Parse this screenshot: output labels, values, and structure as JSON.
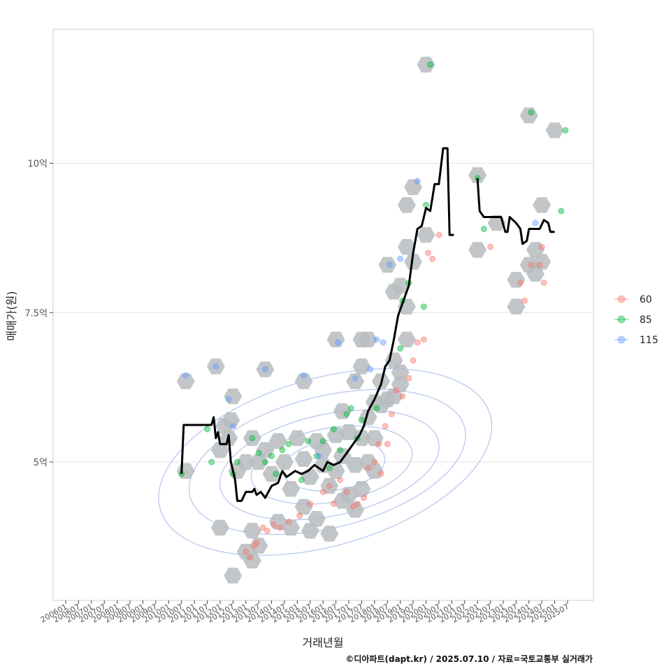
{
  "chart_data": {
    "type": "scatter",
    "xlabel": "거래년월",
    "ylabel": "매매가(원)",
    "caption": "©디아파트(dapt.kr) / 2025.07.10 / 자료=국토교통부 실거래가",
    "x_ticks": [
      "200601",
      "200607",
      "200701",
      "200707",
      "200801",
      "200807",
      "200901",
      "200907",
      "201001",
      "201007",
      "201101",
      "201107",
      "201201",
      "201207",
      "201301",
      "201307",
      "201401",
      "201407",
      "201501",
      "201507",
      "201601",
      "201607",
      "201701",
      "201707",
      "201801",
      "201807",
      "201901",
      "201907",
      "202001",
      "202007",
      "202101",
      "202107",
      "202201",
      "202207",
      "202301",
      "202307",
      "202401",
      "202407",
      "202501",
      "202507"
    ],
    "y_ticks": [
      {
        "value": 5,
        "label": "5억"
      },
      {
        "value": 7.5,
        "label": "7.5억"
      },
      {
        "value": 10,
        "label": "10억"
      }
    ],
    "xlim": [
      "2006-01",
      "2025-12"
    ],
    "ylim": [
      2.7,
      12.3
    ],
    "grid": "horizontal",
    "legend_position": "right",
    "series": [
      {
        "name": "60",
        "color": "#F8766D",
        "points": [
          [
            "2013-01",
            3.5
          ],
          [
            "2013-03",
            3.4
          ],
          [
            "2013-05",
            3.6
          ],
          [
            "2013-06",
            3.65
          ],
          [
            "2013-09",
            3.9
          ],
          [
            "2013-11",
            3.85
          ],
          [
            "2014-02",
            3.95
          ],
          [
            "2014-05",
            3.9
          ],
          [
            "2014-09",
            4.0
          ],
          [
            "2015-02",
            4.1
          ],
          [
            "2015-07",
            4.3
          ],
          [
            "2016-01",
            4.5
          ],
          [
            "2016-04",
            4.6
          ],
          [
            "2016-06",
            4.3
          ],
          [
            "2016-09",
            4.7
          ],
          [
            "2016-12",
            4.5
          ],
          [
            "2017-03",
            4.25
          ],
          [
            "2017-05",
            4.3
          ],
          [
            "2017-08",
            4.4
          ],
          [
            "2017-10",
            4.9
          ],
          [
            "2018-01",
            5.0
          ],
          [
            "2018-03",
            5.3
          ],
          [
            "2018-04",
            4.8
          ],
          [
            "2018-06",
            5.6
          ],
          [
            "2018-07",
            5.3
          ],
          [
            "2018-09",
            5.8
          ],
          [
            "2018-11",
            6.2
          ],
          [
            "2019-02",
            6.1
          ],
          [
            "2019-05",
            6.4
          ],
          [
            "2019-07",
            6.7
          ],
          [
            "2019-09",
            7.0
          ],
          [
            "2019-12",
            7.05
          ],
          [
            "2020-02",
            8.5
          ],
          [
            "2020-04",
            8.4
          ],
          [
            "2020-07",
            8.8
          ],
          [
            "2022-07",
            8.6
          ],
          [
            "2023-09",
            8.0
          ],
          [
            "2023-11",
            7.7
          ],
          [
            "2024-02",
            8.3
          ],
          [
            "2024-06",
            8.3
          ],
          [
            "2024-07",
            8.6
          ],
          [
            "2024-08",
            8.0
          ]
        ]
      },
      {
        "name": "85",
        "color": "#00BA38",
        "points": [
          [
            "2010-07",
            4.8
          ],
          [
            "2011-07",
            5.55
          ],
          [
            "2011-09",
            5.0
          ],
          [
            "2012-07",
            4.8
          ],
          [
            "2012-09",
            5.0
          ],
          [
            "2013-04",
            5.4
          ],
          [
            "2013-07",
            5.15
          ],
          [
            "2013-10",
            5.0
          ],
          [
            "2014-01",
            5.1
          ],
          [
            "2014-03",
            4.8
          ],
          [
            "2014-06",
            5.2
          ],
          [
            "2014-09",
            5.3
          ],
          [
            "2015-03",
            4.7
          ],
          [
            "2015-06",
            5.35
          ],
          [
            "2015-10",
            5.1
          ],
          [
            "2016-01",
            5.35
          ],
          [
            "2016-04",
            4.9
          ],
          [
            "2016-06",
            5.55
          ],
          [
            "2016-09",
            5.2
          ],
          [
            "2016-12",
            5.8
          ],
          [
            "2017-02",
            5.9
          ],
          [
            "2017-05",
            5.4
          ],
          [
            "2017-07",
            5.7
          ],
          [
            "2018-02",
            5.9
          ],
          [
            "2019-01",
            6.9
          ],
          [
            "2019-02",
            7.7
          ],
          [
            "2019-05",
            8.0
          ],
          [
            "2019-12",
            7.6
          ],
          [
            "2020-01",
            9.3
          ],
          [
            "2020-03",
            11.65
          ],
          [
            "2022-01",
            9.75
          ],
          [
            "2022-04",
            8.9
          ],
          [
            "2024-02",
            10.85
          ],
          [
            "2025-04",
            9.2
          ],
          [
            "2025-06",
            10.55
          ]
        ]
      },
      {
        "name": "115",
        "color": "#619CFF",
        "points": [
          [
            "2010-09",
            6.45
          ],
          [
            "2011-11",
            6.6
          ],
          [
            "2012-05",
            6.05
          ],
          [
            "2012-07",
            5.6
          ],
          [
            "2013-10",
            6.55
          ],
          [
            "2015-04",
            6.45
          ],
          [
            "2015-11",
            5.1
          ],
          [
            "2016-08",
            7.0
          ],
          [
            "2017-04",
            6.4
          ],
          [
            "2017-11",
            6.55
          ],
          [
            "2018-02",
            7.05
          ],
          [
            "2018-05",
            7.0
          ],
          [
            "2018-08",
            8.3
          ],
          [
            "2019-01",
            8.4
          ],
          [
            "2019-09",
            9.7
          ],
          [
            "2024-04",
            9.0
          ]
        ]
      }
    ],
    "median_line": [
      [
        "2010-07",
        4.8
      ],
      [
        "2010-08",
        5.62
      ],
      [
        "2011-09",
        5.62
      ],
      [
        "2011-10",
        5.75
      ],
      [
        "2011-11",
        5.4
      ],
      [
        "2011-12",
        5.5
      ],
      [
        "2012-01",
        5.3
      ],
      [
        "2012-04",
        5.3
      ],
      [
        "2012-05",
        5.45
      ],
      [
        "2012-06",
        5.0
      ],
      [
        "2012-08",
        4.7
      ],
      [
        "2012-09",
        4.35
      ],
      [
        "2012-11",
        4.35
      ],
      [
        "2013-01",
        4.5
      ],
      [
        "2013-04",
        4.5
      ],
      [
        "2013-05",
        4.55
      ],
      [
        "2013-06",
        4.45
      ],
      [
        "2013-08",
        4.5
      ],
      [
        "2013-10",
        4.4
      ],
      [
        "2014-01",
        4.6
      ],
      [
        "2014-04",
        4.65
      ],
      [
        "2014-06",
        4.85
      ],
      [
        "2014-08",
        4.75
      ],
      [
        "2014-12",
        4.85
      ],
      [
        "2015-03",
        4.8
      ],
      [
        "2015-06",
        4.85
      ],
      [
        "2015-09",
        4.95
      ],
      [
        "2016-01",
        4.85
      ],
      [
        "2016-03",
        5.0
      ],
      [
        "2016-06",
        4.95
      ],
      [
        "2016-09",
        5.0
      ],
      [
        "2016-12",
        5.15
      ],
      [
        "2017-04",
        5.35
      ],
      [
        "2017-06",
        5.45
      ],
      [
        "2017-08",
        5.6
      ],
      [
        "2017-10",
        5.85
      ],
      [
        "2018-01",
        6.05
      ],
      [
        "2018-04",
        6.3
      ],
      [
        "2018-06",
        6.6
      ],
      [
        "2018-08",
        6.7
      ],
      [
        "2018-10",
        7.05
      ],
      [
        "2018-12",
        7.45
      ],
      [
        "2019-02",
        7.65
      ],
      [
        "2019-05",
        7.95
      ],
      [
        "2019-07",
        8.5
      ],
      [
        "2019-09",
        8.9
      ],
      [
        "2019-11",
        8.95
      ],
      [
        "2020-01",
        9.25
      ],
      [
        "2020-03",
        9.2
      ],
      [
        "2020-05",
        9.65
      ],
      [
        "2020-07",
        9.65
      ],
      [
        "2020-09",
        10.25
      ],
      [
        "2020-11",
        10.25
      ],
      [
        "2020-12",
        8.8
      ],
      [
        "2021-02",
        8.8
      ]
    ],
    "median_line_2": [
      [
        "2022-01",
        9.75
      ],
      [
        "2022-02",
        9.2
      ],
      [
        "2022-04",
        9.1
      ],
      [
        "2022-12",
        9.1
      ],
      [
        "2023-02",
        8.85
      ],
      [
        "2023-03",
        8.85
      ],
      [
        "2023-04",
        9.1
      ],
      [
        "2023-07",
        9.0
      ],
      [
        "2023-09",
        8.9
      ],
      [
        "2023-10",
        8.65
      ],
      [
        "2023-12",
        8.7
      ],
      [
        "2024-01",
        8.9
      ],
      [
        "2024-06",
        8.9
      ],
      [
        "2024-08",
        9.05
      ],
      [
        "2024-10",
        9.0
      ],
      [
        "2024-11",
        8.85
      ],
      [
        "2025-01",
        8.85
      ]
    ],
    "hexbins": [
      [
        "2010-09",
        6.35
      ],
      [
        "2010-09",
        4.85
      ],
      [
        "2011-11",
        6.6
      ],
      [
        "2012-03",
        5.6
      ],
      [
        "2012-01",
        5.2
      ],
      [
        "2012-06",
        5.7
      ],
      [
        "2012-09",
        4.85
      ],
      [
        "2012-07",
        6.1
      ],
      [
        "2012-05",
        5.4
      ],
      [
        "2012-01",
        3.9
      ],
      [
        "2012-07",
        3.1
      ],
      [
        "2013-01",
        5.0
      ],
      [
        "2013-01",
        3.5
      ],
      [
        "2013-04",
        5.4
      ],
      [
        "2013-04",
        3.85
      ],
      [
        "2013-07",
        5.0
      ],
      [
        "2013-07",
        3.6
      ],
      [
        "2013-04",
        3.35
      ],
      [
        "2013-10",
        6.55
      ],
      [
        "2013-10",
        5.2
      ],
      [
        "2014-01",
        4.8
      ],
      [
        "2014-04",
        5.35
      ],
      [
        "2014-04",
        4.0
      ],
      [
        "2014-07",
        5.0
      ],
      [
        "2014-10",
        4.55
      ],
      [
        "2014-10",
        3.9
      ],
      [
        "2015-01",
        5.4
      ],
      [
        "2015-04",
        5.05
      ],
      [
        "2015-04",
        6.35
      ],
      [
        "2015-04",
        4.25
      ],
      [
        "2015-07",
        4.75
      ],
      [
        "2015-07",
        3.85
      ],
      [
        "2015-10",
        5.35
      ],
      [
        "2015-10",
        4.05
      ],
      [
        "2016-01",
        4.95
      ],
      [
        "2016-01",
        5.2
      ],
      [
        "2016-04",
        4.6
      ],
      [
        "2016-04",
        3.8
      ],
      [
        "2016-07",
        5.45
      ],
      [
        "2016-07",
        4.85
      ],
      [
        "2016-07",
        7.05
      ],
      [
        "2016-10",
        5.1
      ],
      [
        "2016-10",
        4.35
      ],
      [
        "2016-10",
        5.85
      ],
      [
        "2017-01",
        5.5
      ],
      [
        "2017-01",
        4.45
      ],
      [
        "2017-04",
        4.95
      ],
      [
        "2017-04",
        6.35
      ],
      [
        "2017-04",
        4.2
      ],
      [
        "2017-07",
        5.4
      ],
      [
        "2017-07",
        6.6
      ],
      [
        "2017-07",
        7.05
      ],
      [
        "2017-07",
        4.55
      ],
      [
        "2017-10",
        5.0
      ],
      [
        "2017-10",
        5.75
      ],
      [
        "2017-10",
        7.05
      ],
      [
        "2018-01",
        5.4
      ],
      [
        "2018-01",
        4.85
      ],
      [
        "2018-01",
        6.0
      ],
      [
        "2018-04",
        5.95
      ],
      [
        "2018-04",
        6.35
      ],
      [
        "2018-07",
        6.05
      ],
      [
        "2018-07",
        8.3
      ],
      [
        "2018-10",
        6.7
      ],
      [
        "2018-10",
        7.85
      ],
      [
        "2018-10",
        6.1
      ],
      [
        "2019-01",
        6.5
      ],
      [
        "2019-01",
        7.95
      ],
      [
        "2019-01",
        6.3
      ],
      [
        "2019-04",
        9.3
      ],
      [
        "2019-04",
        8.6
      ],
      [
        "2019-04",
        7.05
      ],
      [
        "2019-04",
        7.6
      ],
      [
        "2019-07",
        9.6
      ],
      [
        "2019-07",
        8.35
      ],
      [
        "2020-01",
        11.65
      ],
      [
        "2020-01",
        8.8
      ],
      [
        "2022-01",
        9.8
      ],
      [
        "2022-01",
        8.55
      ],
      [
        "2022-10",
        9.0
      ],
      [
        "2023-07",
        7.6
      ],
      [
        "2023-07",
        8.05
      ],
      [
        "2024-01",
        10.8
      ],
      [
        "2024-01",
        8.3
      ],
      [
        "2024-04",
        8.55
      ],
      [
        "2024-04",
        8.15
      ],
      [
        "2024-07",
        9.3
      ],
      [
        "2024-07",
        8.35
      ],
      [
        "2025-01",
        10.55
      ]
    ],
    "contours": [
      {
        "cx": "2016-06",
        "cy": 4.95,
        "rx": 24,
        "ry": 0.42,
        "rot": -8
      },
      {
        "cx": "2016-05",
        "cy": 4.95,
        "rx": 38,
        "ry": 0.62,
        "rot": -10
      },
      {
        "cx": "2016-04",
        "cy": 4.95,
        "rx": 52,
        "ry": 0.85,
        "rot": -12
      },
      {
        "cx": "2016-03",
        "cy": 5.0,
        "rx": 66,
        "ry": 1.1,
        "rot": -14
      },
      {
        "cx": "2016-02",
        "cy": 5.0,
        "rx": 80,
        "ry": 1.4,
        "rot": -16
      }
    ]
  }
}
